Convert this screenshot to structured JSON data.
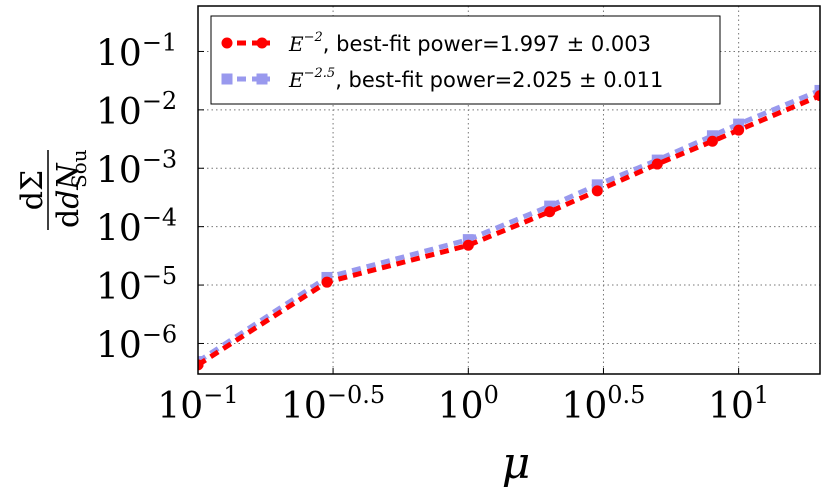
{
  "chart_data": {
    "type": "line",
    "title": "",
    "xlabel": "μ",
    "ylabel": {
      "numerator": "dΣ",
      "denominator_main": "dN",
      "denominator_sub": "Sou"
    },
    "xscale": "log",
    "yscale": "log",
    "xlim": [
      0.1,
      20
    ],
    "ylim": [
      3e-07,
      0.6
    ],
    "grid": true,
    "legend_position": "top-left",
    "x_ticks": [
      {
        "base": "10",
        "exp": "−1",
        "value": 0.1
      },
      {
        "base": "10",
        "exp": "−0.5",
        "value": 0.316
      },
      {
        "base": "10",
        "exp": "0",
        "value": 1
      },
      {
        "base": "10",
        "exp": "0.5",
        "value": 3.162
      },
      {
        "base": "10",
        "exp": "1",
        "value": 10
      }
    ],
    "y_ticks": [
      {
        "base": "10",
        "exp": "−6",
        "value": 1e-06
      },
      {
        "base": "10",
        "exp": "−5",
        "value": 1e-05
      },
      {
        "base": "10",
        "exp": "−4",
        "value": 0.0001
      },
      {
        "base": "10",
        "exp": "−3",
        "value": 0.001
      },
      {
        "base": "10",
        "exp": "−2",
        "value": 0.01
      },
      {
        "base": "10",
        "exp": "−1",
        "value": 0.1
      }
    ],
    "series": [
      {
        "name": "E^-2",
        "legend_math": "E",
        "legend_sup": "−2",
        "legend_text": ", best-fit power=1.997 ± 0.003",
        "color": "#ff0000",
        "marker": "circle",
        "x": [
          0.1,
          0.3,
          1.0,
          2.0,
          3.0,
          5.0,
          8.0,
          10.0,
          20.0
        ],
        "y": [
          4.3e-07,
          1.12e-05,
          4.8e-05,
          0.00018,
          0.00041,
          0.00118,
          0.0029,
          0.0045,
          0.0175
        ]
      },
      {
        "name": "E^-2.5",
        "legend_math": "E",
        "legend_sup": "−2.5",
        "legend_text": ", best-fit power=2.025 ± 0.011",
        "color": "#9999ee",
        "marker": "square",
        "x": [
          0.1,
          0.3,
          1.0,
          2.0,
          3.0,
          5.0,
          8.0,
          10.0,
          20.0
        ],
        "y": [
          4.9e-07,
          1.35e-05,
          6e-05,
          0.000225,
          0.00052,
          0.00138,
          0.0036,
          0.0057,
          0.0215
        ]
      }
    ]
  }
}
